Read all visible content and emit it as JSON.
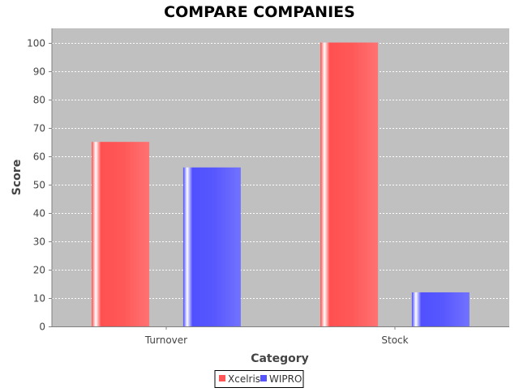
{
  "chart_data": {
    "type": "bar",
    "title": "COMPARE COMPANIES",
    "xlabel": "Category",
    "ylabel": "Score",
    "categories": [
      "Turnover",
      "Stock"
    ],
    "series": [
      {
        "name": "Xcelris",
        "values": [
          65,
          100
        ],
        "color": "#ff5555"
      },
      {
        "name": "WIPRO",
        "values": [
          56,
          12
        ],
        "color": "#5555ff"
      }
    ],
    "ylim": [
      0,
      105
    ],
    "yticks": [
      0,
      10,
      20,
      30,
      40,
      50,
      60,
      70,
      80,
      90,
      100
    ],
    "grid": true,
    "legend_position": "bottom",
    "plot_background": "#c0c0c0"
  }
}
